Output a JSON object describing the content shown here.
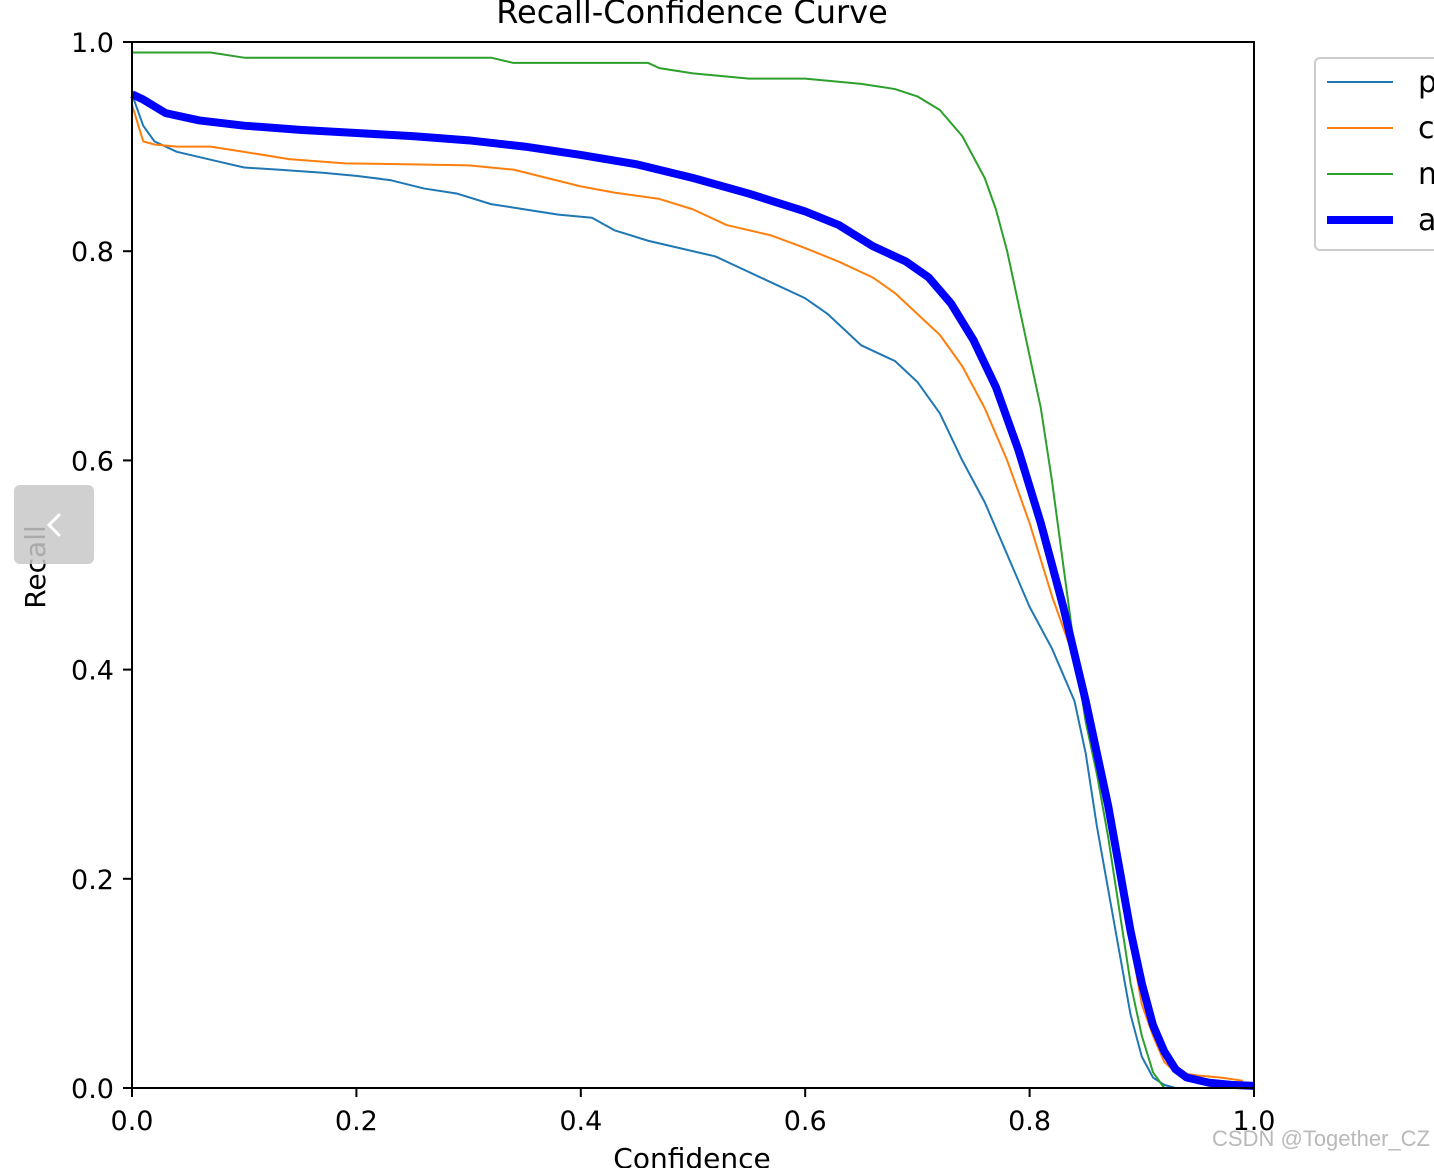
{
  "chart_data": {
    "type": "line",
    "title": "Recall-Confidence Curve",
    "xlabel": "Confidence",
    "ylabel": "Recall",
    "xlim": [
      0,
      1
    ],
    "ylim": [
      0,
      1
    ],
    "xticks": [
      "0.0",
      "0.2",
      "0.4",
      "0.6",
      "0.8",
      "1.0"
    ],
    "yticks": [
      "0.0",
      "0.2",
      "0.4",
      "0.6",
      "0.8",
      "1.0"
    ],
    "grid": false,
    "legend_position": "outside right, top",
    "series": [
      {
        "name": "p",
        "color": "#1f77b4",
        "width": 2,
        "x": [
          0,
          0.01,
          0.02,
          0.04,
          0.06,
          0.08,
          0.1,
          0.13,
          0.17,
          0.2,
          0.23,
          0.26,
          0.29,
          0.32,
          0.35,
          0.38,
          0.41,
          0.43,
          0.46,
          0.48,
          0.52,
          0.54,
          0.57,
          0.6,
          0.62,
          0.65,
          0.68,
          0.7,
          0.72,
          0.74,
          0.76,
          0.78,
          0.8,
          0.82,
          0.84,
          0.85,
          0.86,
          0.87,
          0.88,
          0.89,
          0.9,
          0.91,
          0.92,
          0.93
        ],
        "y": [
          0.95,
          0.92,
          0.905,
          0.895,
          0.89,
          0.885,
          0.88,
          0.878,
          0.875,
          0.872,
          0.868,
          0.86,
          0.855,
          0.845,
          0.84,
          0.835,
          0.832,
          0.82,
          0.81,
          0.805,
          0.795,
          0.785,
          0.77,
          0.755,
          0.74,
          0.71,
          0.695,
          0.675,
          0.645,
          0.6,
          0.56,
          0.51,
          0.46,
          0.42,
          0.37,
          0.32,
          0.25,
          0.19,
          0.13,
          0.07,
          0.03,
          0.01,
          0.003,
          0
        ],
        "label_key": "chart_data.series.0.name"
      },
      {
        "name": "c",
        "color": "#ff7f0e",
        "width": 2,
        "x": [
          0,
          0.01,
          0.02,
          0.04,
          0.07,
          0.1,
          0.14,
          0.19,
          0.25,
          0.3,
          0.34,
          0.37,
          0.4,
          0.43,
          0.47,
          0.5,
          0.53,
          0.57,
          0.6,
          0.63,
          0.66,
          0.68,
          0.7,
          0.72,
          0.74,
          0.76,
          0.78,
          0.8,
          0.82,
          0.84,
          0.86,
          0.87,
          0.88,
          0.89,
          0.9,
          0.91,
          0.92,
          0.93,
          0.95,
          0.97,
          0.99
        ],
        "y": [
          0.94,
          0.905,
          0.902,
          0.9,
          0.9,
          0.895,
          0.888,
          0.884,
          0.883,
          0.882,
          0.878,
          0.87,
          0.862,
          0.856,
          0.85,
          0.84,
          0.825,
          0.815,
          0.803,
          0.79,
          0.775,
          0.76,
          0.74,
          0.72,
          0.69,
          0.65,
          0.6,
          0.54,
          0.47,
          0.41,
          0.33,
          0.27,
          0.2,
          0.14,
          0.08,
          0.05,
          0.025,
          0.015,
          0.012,
          0.01,
          0.007
        ],
        "label_key": "chart_data.series.1.name"
      },
      {
        "name": "n",
        "color": "#2ca02c",
        "width": 2,
        "x": [
          0,
          0.03,
          0.07,
          0.1,
          0.15,
          0.2,
          0.25,
          0.32,
          0.34,
          0.4,
          0.46,
          0.47,
          0.5,
          0.55,
          0.6,
          0.65,
          0.68,
          0.7,
          0.72,
          0.74,
          0.76,
          0.77,
          0.78,
          0.79,
          0.8,
          0.81,
          0.82,
          0.83,
          0.84,
          0.85,
          0.86,
          0.87,
          0.88,
          0.89,
          0.9,
          0.91,
          0.92
        ],
        "y": [
          0.99,
          0.99,
          0.99,
          0.985,
          0.985,
          0.985,
          0.985,
          0.985,
          0.98,
          0.98,
          0.98,
          0.975,
          0.97,
          0.965,
          0.965,
          0.96,
          0.955,
          0.948,
          0.935,
          0.91,
          0.87,
          0.84,
          0.8,
          0.75,
          0.7,
          0.65,
          0.58,
          0.5,
          0.42,
          0.35,
          0.3,
          0.24,
          0.17,
          0.1,
          0.05,
          0.015,
          0
        ],
        "label_key": "chart_data.series.2.name"
      },
      {
        "name": "a",
        "color": "#0000ff",
        "width": 8,
        "x": [
          0,
          0.01,
          0.03,
          0.06,
          0.1,
          0.15,
          0.2,
          0.25,
          0.3,
          0.35,
          0.4,
          0.45,
          0.5,
          0.55,
          0.6,
          0.63,
          0.66,
          0.69,
          0.71,
          0.73,
          0.75,
          0.77,
          0.79,
          0.81,
          0.83,
          0.85,
          0.87,
          0.88,
          0.89,
          0.9,
          0.91,
          0.92,
          0.93,
          0.94,
          0.96,
          0.98,
          1.0
        ],
        "y": [
          0.95,
          0.945,
          0.932,
          0.925,
          0.92,
          0.916,
          0.913,
          0.91,
          0.906,
          0.9,
          0.892,
          0.883,
          0.87,
          0.855,
          0.838,
          0.825,
          0.805,
          0.79,
          0.775,
          0.75,
          0.715,
          0.67,
          0.61,
          0.54,
          0.46,
          0.37,
          0.27,
          0.21,
          0.15,
          0.1,
          0.06,
          0.035,
          0.018,
          0.01,
          0.005,
          0.003,
          0.002
        ],
        "label_key": "chart_data.series.3.name"
      }
    ]
  },
  "ui": {
    "watermark": "CSDN @Together_CZ",
    "prev_icon": "chevron-left-icon"
  }
}
